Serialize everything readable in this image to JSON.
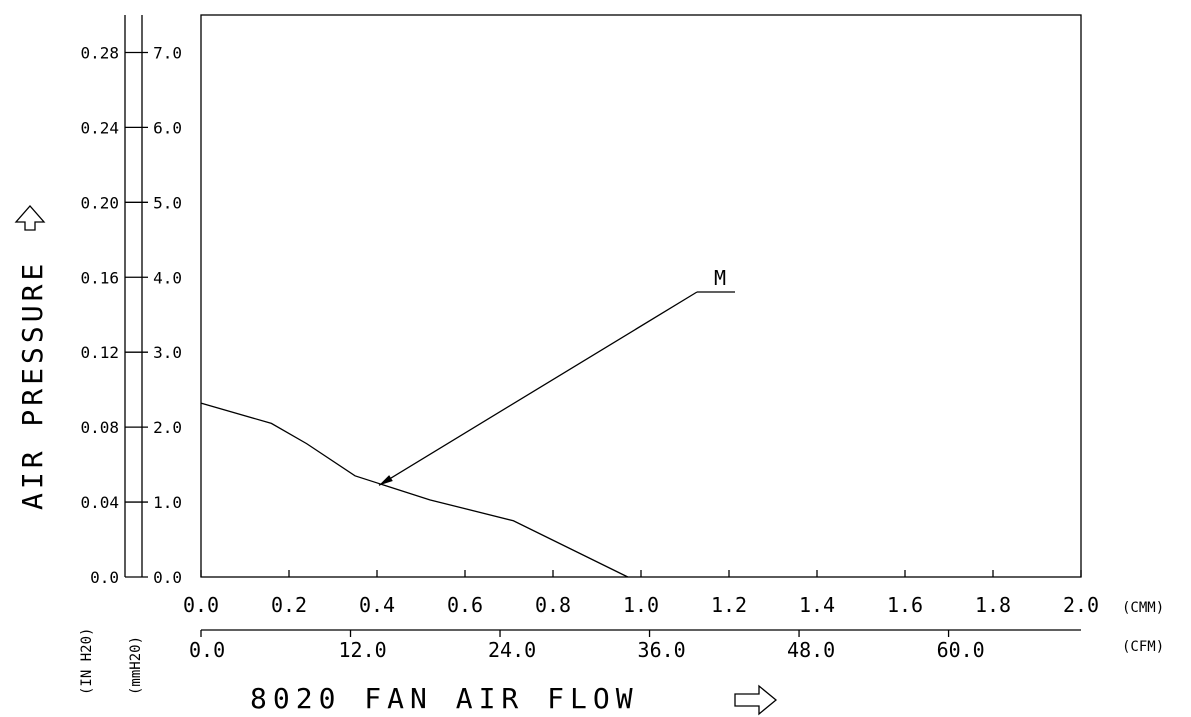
{
  "chart_data": {
    "type": "line",
    "title": "8020  FAN  AIR  FLOW",
    "ylabel": "AIR  PRESSURE",
    "x_axes": [
      {
        "unit": "(CMM)",
        "range": [
          0,
          2.0
        ],
        "ticks": [
          "0.0",
          "0.2",
          "0.4",
          "0.6",
          "0.8",
          "1.0",
          "1.2",
          "1.4",
          "1.6",
          "1.8",
          "2.0"
        ]
      },
      {
        "unit": "(CFM)",
        "ticks": [
          "0.0",
          "12.0",
          "24.0",
          "36.0",
          "48.0",
          "60.0"
        ],
        "tick_values": [
          0,
          12,
          24,
          36,
          48,
          60
        ]
      }
    ],
    "y_axes": [
      {
        "unit": "(IN H20)",
        "ticks": [
          "0.0",
          "0.04",
          "0.08",
          "0.12",
          "0.16",
          "0.20",
          "0.24",
          "0.28"
        ]
      },
      {
        "unit": "(mmH20)",
        "range": [
          0,
          7.5
        ],
        "ticks": [
          "0.0",
          "1.0",
          "2.0",
          "3.0",
          "4.0",
          "5.0",
          "6.0",
          "7.0"
        ]
      }
    ],
    "series": [
      {
        "name": "M",
        "x": [
          0.0,
          0.16,
          0.24,
          0.35,
          0.52,
          0.71,
          0.97
        ],
        "y": [
          2.32,
          2.05,
          1.78,
          1.35,
          1.03,
          0.75,
          0.0
        ]
      }
    ],
    "annotation": {
      "text": "M",
      "points_to": [
        0.4,
        1.25
      ]
    }
  }
}
